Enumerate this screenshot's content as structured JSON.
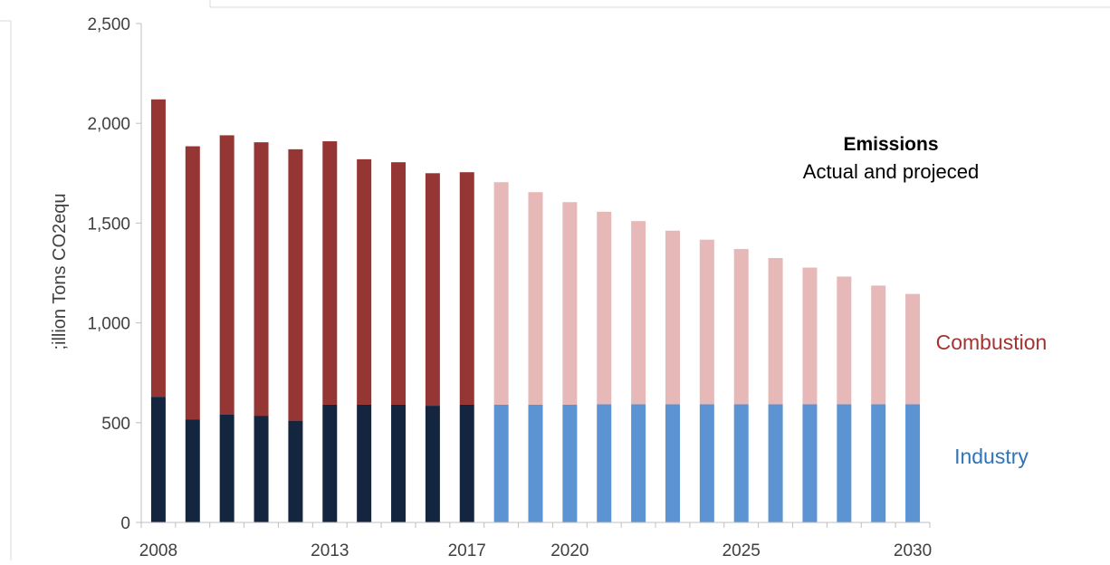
{
  "chart_data": {
    "type": "bar",
    "stacked": true,
    "title": "Emissions",
    "subtitle": "Actual and projeced",
    "ylabel": ";illion Tons CO2equ",
    "ylim": [
      0,
      2500
    ],
    "yticks": [
      0,
      500,
      1000,
      1500,
      2000,
      2500
    ],
    "ytick_labels": [
      "0",
      "500",
      "1,000",
      "1,500",
      "2,000",
      "2,500"
    ],
    "x": [
      2008,
      2009,
      2010,
      2011,
      2012,
      2013,
      2014,
      2015,
      2016,
      2017,
      2018,
      2019,
      2020,
      2021,
      2022,
      2023,
      2024,
      2025,
      2026,
      2027,
      2028,
      2029,
      2030
    ],
    "xtick_labels": [
      "2008",
      "2013",
      "2017",
      "2020",
      "2025",
      "2030"
    ],
    "actual_until": 2017,
    "series": [
      {
        "name": "Industry",
        "values": [
          630,
          515,
          540,
          535,
          510,
          590,
          590,
          590,
          585,
          590,
          590,
          590,
          590,
          592,
          592,
          592,
          592,
          592,
          592,
          592,
          592,
          592,
          592
        ],
        "color_actual": "#14253f",
        "color_projected": "#5b93d3",
        "label_color": "#2e75b6"
      },
      {
        "name": "Combustion",
        "values": [
          1490,
          1370,
          1400,
          1370,
          1360,
          1320,
          1230,
          1215,
          1165,
          1165,
          1115,
          1065,
          1015,
          965,
          918,
          870,
          825,
          778,
          733,
          685,
          640,
          595,
          553
        ],
        "color_actual": "#963634",
        "color_projected": "#e6b8b7",
        "label_color": "#a5332f"
      }
    ],
    "grid": false,
    "legend": "none"
  }
}
